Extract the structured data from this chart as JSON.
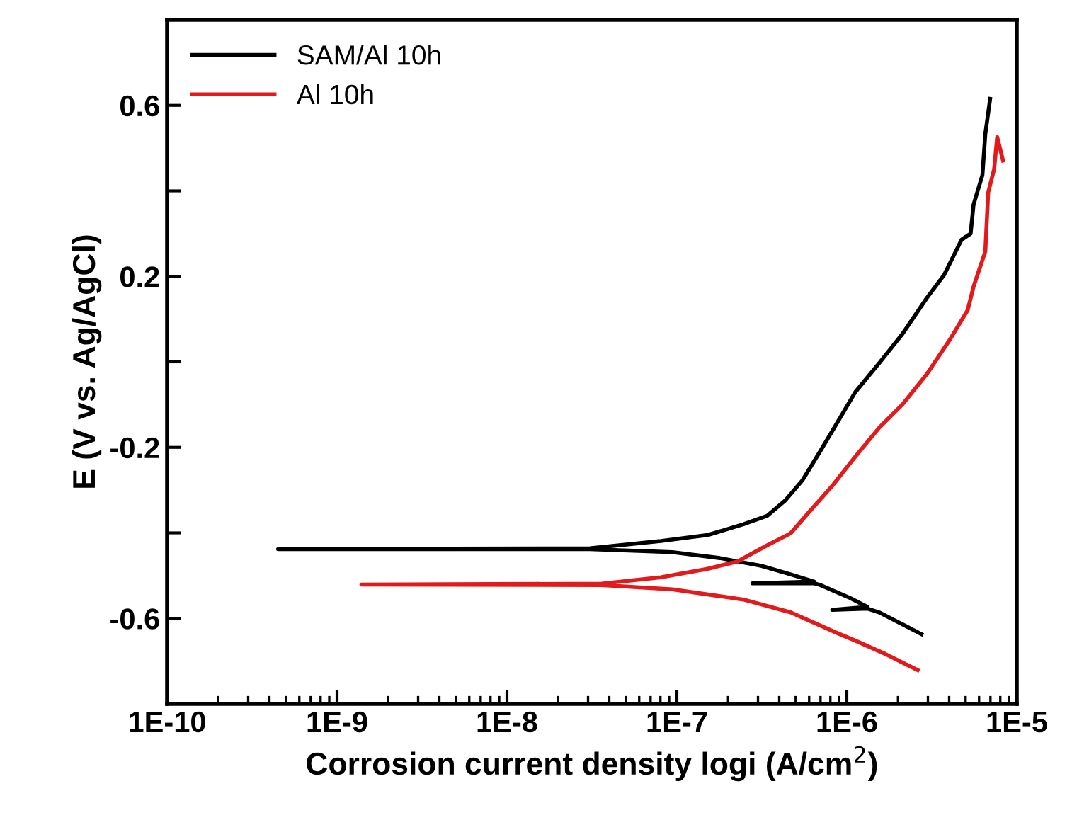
{
  "chart_data": {
    "type": "line",
    "xlabel": "Corrosion current density logi (A/cm$^{2}$)",
    "ylabel": "E (V vs. Ag/AgCl)",
    "log": "x",
    "xlim": [
      1e-10,
      1e-05
    ],
    "ylim": [
      -0.8,
      0.8
    ],
    "xticks": [
      {
        "value": 1e-10,
        "label": "1E-10"
      },
      {
        "value": 1e-09,
        "label": "1E-9"
      },
      {
        "value": 1e-08,
        "label": "1E-8"
      },
      {
        "value": 1e-07,
        "label": "1E-7"
      },
      {
        "value": 1e-06,
        "label": "1E-6"
      },
      {
        "value": 1e-05,
        "label": "1E-5"
      }
    ],
    "yticks": [
      {
        "value": -0.6,
        "label": "-0.6"
      },
      {
        "value": -0.4,
        "label": null
      },
      {
        "value": -0.2,
        "label": "-0.2"
      },
      {
        "value": 0,
        "label": null
      },
      {
        "value": 0.2,
        "label": "0.2"
      },
      {
        "value": 0.4,
        "label": null
      },
      {
        "value": 0.6,
        "label": "0.6"
      }
    ],
    "grid": false,
    "legend": "top left",
    "marker": "none",
    "line_style": "solid",
    "series": [
      {
        "name": "SAM/Al 10h",
        "color": "#000000",
        "x": [
          2.75e-06,
          2.13e-06,
          1.55e-06,
          1.32e-06,
          8.2e-07,
          1.32e-06,
          1.04e-06,
          6.97e-07,
          6.43e-07,
          2.78e-07,
          6.43e-07,
          4.67e-07,
          3.13e-07,
          1.79e-07,
          9.4e-08,
          3.08e-08,
          4.5e-10,
          3.08e-08,
          8.05e-08,
          1.52e-07,
          2.46e-07,
          3.4e-07,
          4.32e-07,
          5.48e-07,
          6.97e-07,
          8.85e-07,
          1.12e-06,
          1.55e-06,
          2.13e-06,
          2.94e-06,
          3.73e-06,
          4.74e-06,
          5.35e-06,
          5.57e-06,
          6.28e-06,
          6.53e-06,
          6.97e-06
        ],
        "values": [
          -0.637,
          -0.614,
          -0.586,
          -0.577,
          -0.58,
          -0.573,
          -0.552,
          -0.522,
          -0.518,
          -0.518,
          -0.514,
          -0.497,
          -0.477,
          -0.459,
          -0.445,
          -0.438,
          -0.438,
          -0.436,
          -0.419,
          -0.405,
          -0.38,
          -0.36,
          -0.325,
          -0.277,
          -0.209,
          -0.14,
          -0.071,
          -0.003,
          0.066,
          0.148,
          0.203,
          0.286,
          0.3,
          0.368,
          0.437,
          0.533,
          0.615
        ]
      },
      {
        "name": "Al 10h",
        "color": "#e31a1c",
        "x": [
          2.61e-06,
          1.68e-06,
          1.12e-06,
          8.85e-07,
          4.67e-07,
          2.46e-07,
          9.4e-08,
          3.61e-08,
          1.39e-09,
          3.61e-08,
          8.05e-08,
          1.52e-07,
          2.27e-07,
          3.4e-07,
          4.67e-07,
          5.94e-07,
          8.17e-07,
          1.12e-06,
          1.55e-06,
          2.13e-06,
          2.94e-06,
          4.04e-06,
          5.14e-06,
          5.57e-06,
          6.53e-06,
          6.79e-06,
          7.36e-06,
          7.67e-06,
          8.3e-06
        ],
        "values": [
          -0.721,
          -0.683,
          -0.652,
          -0.635,
          -0.586,
          -0.556,
          -0.532,
          -0.522,
          -0.521,
          -0.519,
          -0.504,
          -0.484,
          -0.467,
          -0.429,
          -0.401,
          -0.353,
          -0.291,
          -0.222,
          -0.154,
          -0.099,
          -0.03,
          0.052,
          0.121,
          0.176,
          0.258,
          0.396,
          0.451,
          0.526,
          0.471
        ]
      }
    ]
  }
}
